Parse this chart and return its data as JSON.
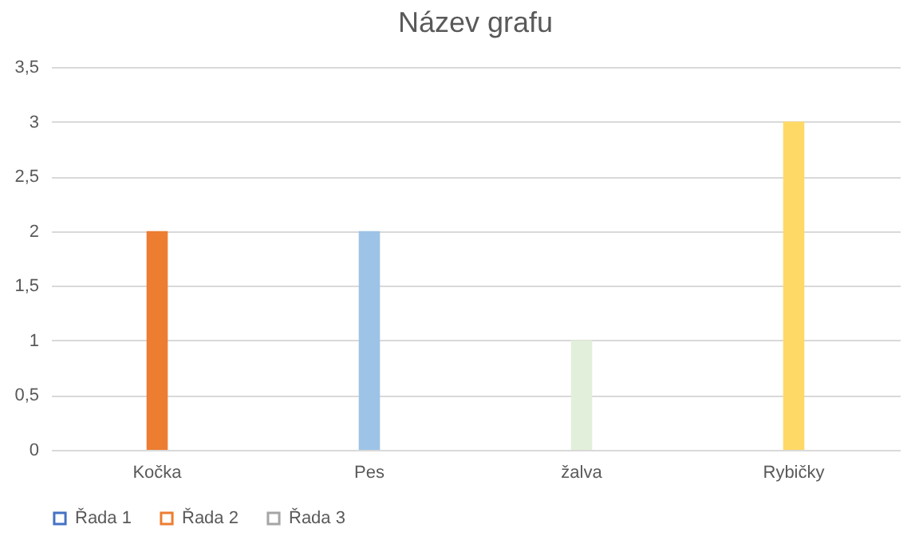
{
  "chart_data": {
    "type": "bar",
    "title": "Název grafu",
    "categories": [
      "Kočka",
      "Pes",
      "žalva",
      "Rybičky"
    ],
    "series": [
      {
        "name": "Řada 1",
        "color": "#4472c4",
        "values": [
          null,
          null,
          null,
          null
        ]
      },
      {
        "name": "Řada 2",
        "color": "#ed7d31",
        "colors": [
          "#ed7d31",
          "#9dc3e6",
          "#e2efda",
          "#ffd966"
        ],
        "values": [
          2,
          2,
          1,
          3
        ]
      },
      {
        "name": "Řada 3",
        "color": "#a5a5a5",
        "values": [
          null,
          null,
          null,
          null
        ]
      }
    ],
    "ylim": [
      0,
      3.5
    ],
    "yticks": [
      0,
      {
        "value": 0.5,
        "label": "0,5"
      },
      1,
      {
        "value": 1.5,
        "label": "1,5"
      },
      2,
      {
        "value": 2.5,
        "label": "2,5"
      },
      3,
      {
        "value": 3.5,
        "label": "3,5"
      }
    ],
    "grid": "y",
    "legend": "bottom"
  }
}
